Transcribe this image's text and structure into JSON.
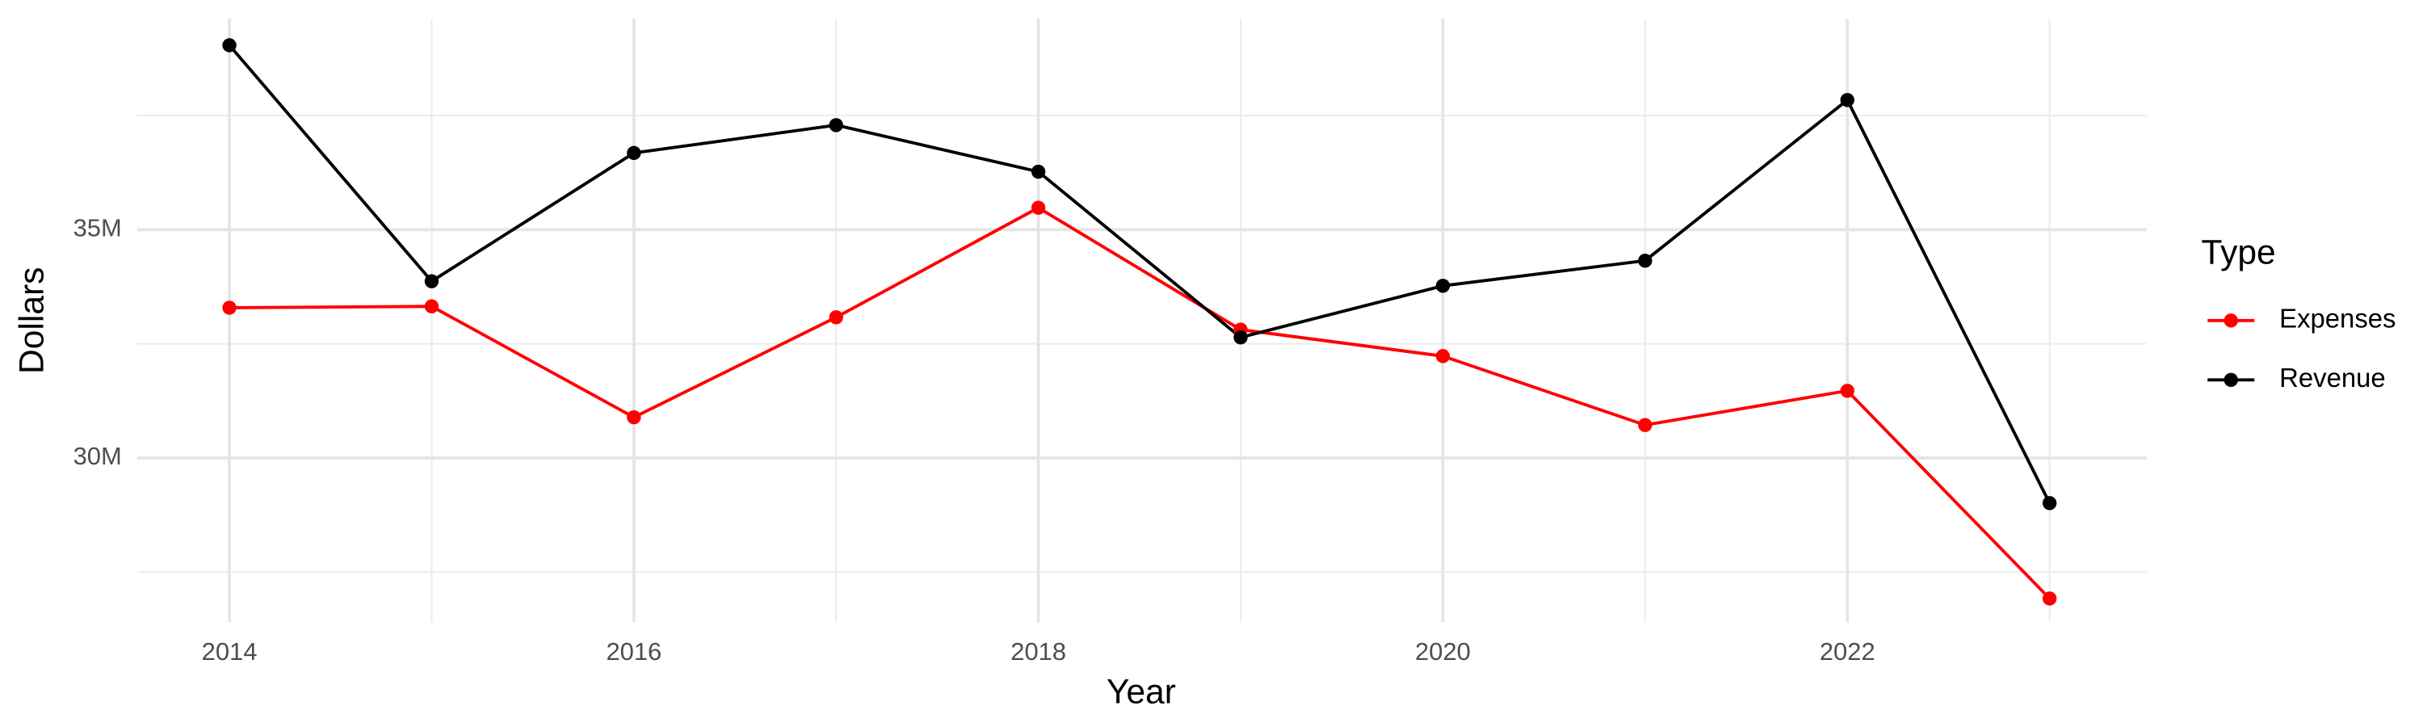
{
  "chart_data": {
    "type": "line",
    "x_label": "Year",
    "y_label": "Dollars",
    "legend_title": "Type",
    "legend_position": "right",
    "x": [
      2014,
      2015,
      2016,
      2017,
      2018,
      2019,
      2020,
      2021,
      2022,
      2023
    ],
    "series": [
      {
        "name": "Expenses",
        "color": "#ff0000",
        "values": [
          33290000,
          33320000,
          30890000,
          33080000,
          35480000,
          32810000,
          32230000,
          30720000,
          31470000,
          26920000
        ]
      },
      {
        "name": "Revenue",
        "color": "#000000",
        "values": [
          39040000,
          33870000,
          36680000,
          37290000,
          36270000,
          32640000,
          33770000,
          34320000,
          37840000,
          29010000
        ]
      }
    ],
    "xlim": [
      2013.545,
      2023.48
    ],
    "xticks": [
      2014,
      2016,
      2018,
      2020,
      2022
    ],
    "ylim": [
      26400000,
      39620000
    ],
    "yticks": [
      {
        "value": 30000000,
        "label": "30M"
      },
      {
        "value": 35000000,
        "label": "35M"
      }
    ],
    "grid": true
  }
}
